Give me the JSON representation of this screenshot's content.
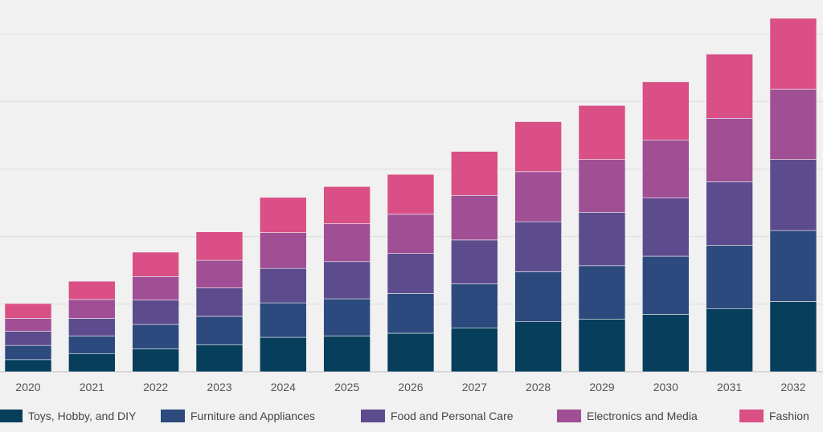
{
  "chart_data": {
    "type": "bar",
    "stacked": true,
    "categories": [
      "2020",
      "2021",
      "2022",
      "2023",
      "2024",
      "2025",
      "2026",
      "2027",
      "2028",
      "2029",
      "2030",
      "2031",
      "2032"
    ],
    "series": [
      {
        "name": "Toys, Hobby, and DIY",
        "color": "#063e5c",
        "values": [
          0.18,
          0.27,
          0.34,
          0.4,
          0.51,
          0.53,
          0.57,
          0.65,
          0.74,
          0.78,
          0.85,
          0.93,
          1.04
        ]
      },
      {
        "name": "Furniture and Appliances",
        "color": "#2d4a7e",
        "values": [
          0.21,
          0.26,
          0.36,
          0.42,
          0.51,
          0.55,
          0.59,
          0.65,
          0.74,
          0.79,
          0.86,
          0.94,
          1.05
        ]
      },
      {
        "name": "Food and Personal Care",
        "color": "#5d4c8d",
        "values": [
          0.21,
          0.26,
          0.36,
          0.42,
          0.51,
          0.55,
          0.59,
          0.65,
          0.74,
          0.79,
          0.86,
          0.94,
          1.05
        ]
      },
      {
        "name": "Electronics and Media",
        "color": "#a04f95",
        "values": [
          0.19,
          0.28,
          0.35,
          0.41,
          0.53,
          0.56,
          0.58,
          0.66,
          0.74,
          0.78,
          0.86,
          0.94,
          1.04
        ]
      },
      {
        "name": "Fashion",
        "color": "#d94f86",
        "values": [
          0.22,
          0.27,
          0.36,
          0.42,
          0.52,
          0.55,
          0.59,
          0.65,
          0.74,
          0.8,
          0.86,
          0.95,
          1.05
        ]
      }
    ],
    "ylim": [
      0,
      5.5
    ],
    "yticks": [
      0,
      1,
      2,
      3,
      4,
      5
    ],
    "grid": true,
    "legend": "bottom"
  }
}
